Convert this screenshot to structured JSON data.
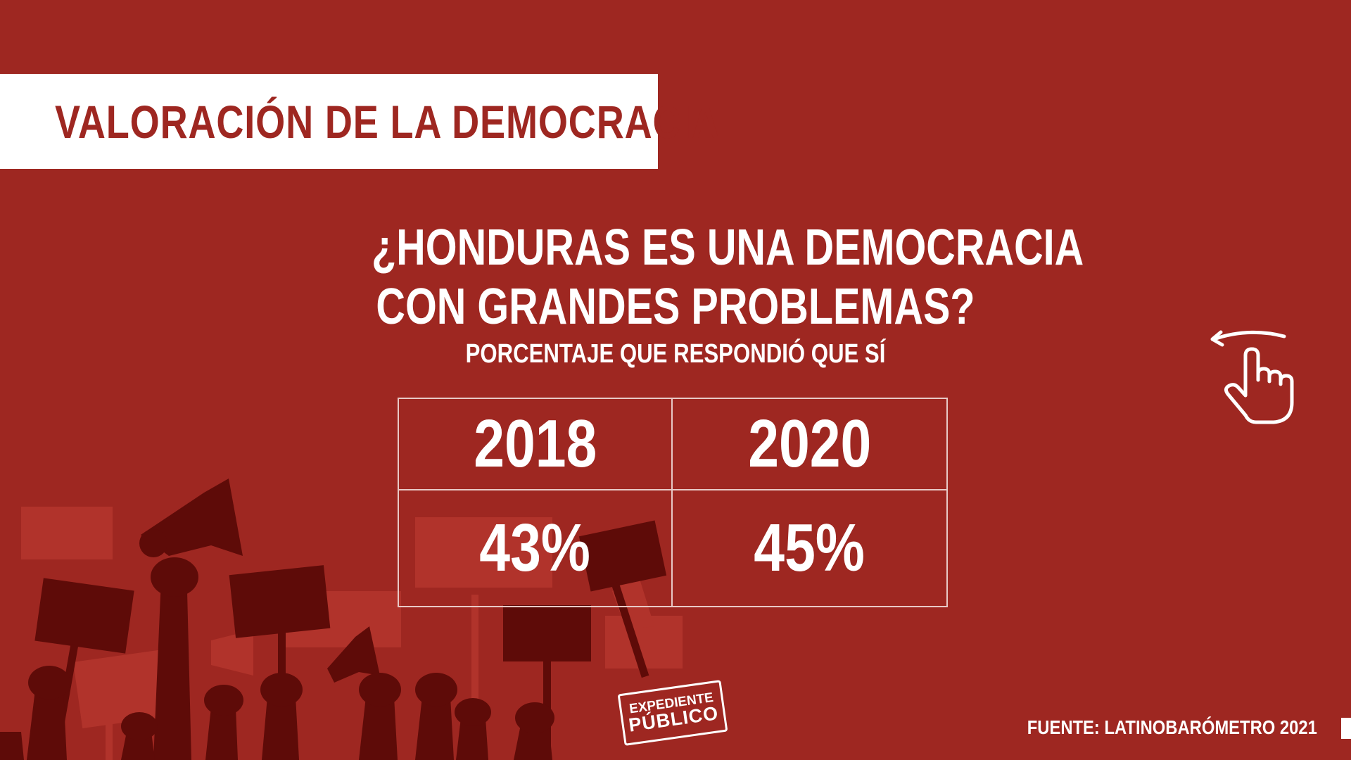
{
  "title": "VALORACIÓN DE LA DEMOCRACIA",
  "question": {
    "line1": "¿HONDURAS ES UNA DEMOCRACIA",
    "line2": "CON GRANDES PROBLEMAS?"
  },
  "subtitle": "PORCENTAJE QUE RESPONDIÓ QUE SÍ",
  "table": {
    "headers": [
      "2018",
      "2020"
    ],
    "values": [
      "43%",
      "45%"
    ]
  },
  "source": "FUENTE: LATINOBARÓMETRO 2021",
  "logo": {
    "line1": "EXPEDIENTE",
    "line2": "PÚBLICO"
  },
  "icons": {
    "swipe": "swipe-left-hand-icon",
    "background": "protest-crowd-illustration"
  },
  "colors": {
    "background": "#9e2721",
    "title_box": "#ffffff",
    "title_text": "#9e2721",
    "silhouette_dark": "#5e0b08",
    "silhouette_light": "#b83a30",
    "text": "#ffffff"
  }
}
